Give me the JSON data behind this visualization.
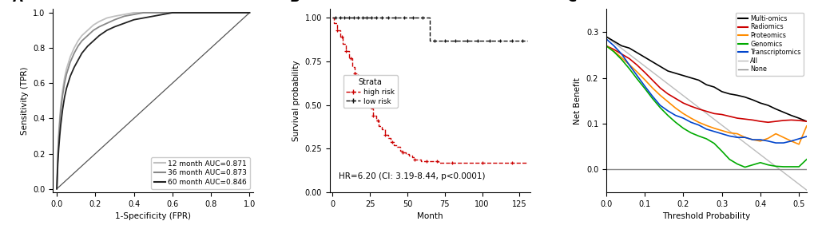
{
  "panel_A": {
    "xlabel": "1-Specificity (FPR)",
    "ylabel": "Sensitivity (TPR)",
    "roc_12": {
      "label": "12 month AUC=0.871",
      "color": "#c0c0c0",
      "x": [
        0,
        0.005,
        0.01,
        0.015,
        0.02,
        0.03,
        0.04,
        0.05,
        0.07,
        0.09,
        0.11,
        0.13,
        0.16,
        0.19,
        0.22,
        0.26,
        0.3,
        0.35,
        0.4,
        0.45,
        0.5,
        0.55,
        0.6,
        1.0
      ],
      "y": [
        0,
        0.2,
        0.32,
        0.4,
        0.47,
        0.56,
        0.63,
        0.68,
        0.75,
        0.8,
        0.84,
        0.87,
        0.9,
        0.93,
        0.95,
        0.97,
        0.98,
        0.99,
        1.0,
        1.0,
        1.0,
        1.0,
        1.0,
        1.0
      ]
    },
    "roc_36": {
      "label": "36 month AUC=0.873",
      "color": "#888888",
      "x": [
        0,
        0.005,
        0.01,
        0.015,
        0.02,
        0.03,
        0.04,
        0.05,
        0.07,
        0.09,
        0.11,
        0.13,
        0.16,
        0.19,
        0.22,
        0.26,
        0.3,
        0.35,
        0.4,
        0.45,
        0.5,
        0.55,
        0.6,
        1.0
      ],
      "y": [
        0,
        0.18,
        0.29,
        0.37,
        0.44,
        0.53,
        0.6,
        0.65,
        0.72,
        0.77,
        0.81,
        0.84,
        0.87,
        0.9,
        0.92,
        0.94,
        0.96,
        0.98,
        0.99,
        1.0,
        1.0,
        1.0,
        1.0,
        1.0
      ]
    },
    "roc_60": {
      "label": "60 month AUC=0.846",
      "color": "#222222",
      "x": [
        0,
        0.005,
        0.01,
        0.015,
        0.02,
        0.03,
        0.04,
        0.05,
        0.07,
        0.09,
        0.11,
        0.13,
        0.16,
        0.19,
        0.22,
        0.26,
        0.3,
        0.35,
        0.4,
        0.45,
        0.5,
        0.55,
        0.6,
        1.0
      ],
      "y": [
        0,
        0.14,
        0.23,
        0.3,
        0.36,
        0.45,
        0.52,
        0.57,
        0.64,
        0.69,
        0.73,
        0.77,
        0.81,
        0.84,
        0.87,
        0.9,
        0.92,
        0.94,
        0.96,
        0.97,
        0.98,
        0.99,
        1.0,
        1.0
      ]
    }
  },
  "panel_B": {
    "xlabel": "Month",
    "ylabel": "Survival probability",
    "annotation": "HR=6.20 (CI: 3.19-8.44, p<0.0001)",
    "high_risk": {
      "label": "high risk",
      "color": "#cc0000",
      "x": [
        0,
        1,
        3,
        5,
        7,
        9,
        11,
        13,
        15,
        17,
        19,
        21,
        23,
        25,
        27,
        29,
        31,
        33,
        35,
        37,
        39,
        41,
        43,
        45,
        47,
        49,
        51,
        53,
        55,
        57,
        59,
        61,
        63,
        65,
        67,
        69,
        71,
        75,
        80,
        90,
        100,
        110,
        120,
        130
      ],
      "y": [
        1.0,
        0.97,
        0.93,
        0.89,
        0.85,
        0.81,
        0.77,
        0.72,
        0.68,
        0.64,
        0.6,
        0.56,
        0.52,
        0.48,
        0.44,
        0.41,
        0.38,
        0.36,
        0.33,
        0.31,
        0.29,
        0.27,
        0.26,
        0.24,
        0.23,
        0.22,
        0.21,
        0.2,
        0.19,
        0.19,
        0.18,
        0.18,
        0.18,
        0.18,
        0.18,
        0.18,
        0.17,
        0.17,
        0.17,
        0.17,
        0.17,
        0.17,
        0.17,
        0.17
      ]
    },
    "low_risk": {
      "label": "low risk",
      "color": "#111111",
      "x": [
        0,
        10,
        20,
        30,
        40,
        50,
        60,
        64,
        65,
        70,
        80,
        90,
        100,
        110,
        120,
        130
      ],
      "y": [
        1.0,
        1.0,
        1.0,
        1.0,
        1.0,
        1.0,
        1.0,
        1.0,
        0.87,
        0.87,
        0.87,
        0.87,
        0.87,
        0.87,
        0.87,
        0.87
      ]
    },
    "censor_high_x": [
      3,
      6,
      9,
      12,
      15,
      18,
      21,
      24,
      27,
      30,
      35,
      40,
      47,
      55,
      63,
      70,
      80,
      100,
      120
    ],
    "censor_low_x": [
      2,
      5,
      8,
      11,
      14,
      17,
      20,
      23,
      26,
      29,
      33,
      37,
      42,
      48,
      54,
      60,
      68,
      75,
      82,
      90,
      97,
      105,
      112,
      120,
      127
    ]
  },
  "panel_C": {
    "xlabel": "Threshold Probability",
    "ylabel": "Net Benefit",
    "xlim": [
      0.0,
      0.52
    ],
    "ylim": [
      -0.05,
      0.35
    ],
    "yticks": [
      0.0,
      0.1,
      0.2,
      0.3
    ],
    "xticks": [
      0.0,
      0.1,
      0.2,
      0.3,
      0.4,
      0.5
    ],
    "multi_omics": {
      "label": "Multi-omics",
      "color": "#000000",
      "x": [
        0.0,
        0.02,
        0.04,
        0.06,
        0.08,
        0.1,
        0.12,
        0.14,
        0.16,
        0.18,
        0.2,
        0.22,
        0.24,
        0.26,
        0.28,
        0.3,
        0.32,
        0.34,
        0.36,
        0.38,
        0.4,
        0.42,
        0.44,
        0.46,
        0.48,
        0.5,
        0.52
      ],
      "y": [
        0.29,
        0.28,
        0.27,
        0.265,
        0.255,
        0.245,
        0.235,
        0.225,
        0.215,
        0.21,
        0.205,
        0.2,
        0.195,
        0.185,
        0.18,
        0.17,
        0.165,
        0.162,
        0.158,
        0.152,
        0.145,
        0.14,
        0.132,
        0.125,
        0.118,
        0.112,
        0.105
      ]
    },
    "radiomics": {
      "label": "Radiomics",
      "color": "#cc0000",
      "x": [
        0.0,
        0.02,
        0.04,
        0.06,
        0.08,
        0.1,
        0.12,
        0.14,
        0.16,
        0.18,
        0.2,
        0.22,
        0.24,
        0.26,
        0.28,
        0.3,
        0.32,
        0.34,
        0.36,
        0.38,
        0.4,
        0.42,
        0.44,
        0.46,
        0.48,
        0.5,
        0.52
      ],
      "y": [
        0.27,
        0.262,
        0.252,
        0.242,
        0.228,
        0.212,
        0.195,
        0.178,
        0.165,
        0.155,
        0.145,
        0.138,
        0.132,
        0.127,
        0.122,
        0.12,
        0.116,
        0.112,
        0.11,
        0.108,
        0.105,
        0.103,
        0.105,
        0.107,
        0.108,
        0.107,
        0.105
      ]
    },
    "proteomics": {
      "label": "Proteomics",
      "color": "#ff8c00",
      "x": [
        0.0,
        0.02,
        0.04,
        0.06,
        0.08,
        0.1,
        0.12,
        0.14,
        0.16,
        0.18,
        0.2,
        0.22,
        0.24,
        0.26,
        0.28,
        0.3,
        0.32,
        0.34,
        0.36,
        0.38,
        0.4,
        0.42,
        0.44,
        0.46,
        0.48,
        0.5,
        0.52
      ],
      "y": [
        0.27,
        0.258,
        0.244,
        0.229,
        0.213,
        0.196,
        0.178,
        0.162,
        0.148,
        0.134,
        0.122,
        0.112,
        0.103,
        0.096,
        0.09,
        0.085,
        0.08,
        0.078,
        0.07,
        0.065,
        0.062,
        0.068,
        0.078,
        0.07,
        0.062,
        0.055,
        0.095
      ]
    },
    "genomics": {
      "label": "Genomics",
      "color": "#00aa00",
      "x": [
        0.0,
        0.02,
        0.04,
        0.06,
        0.08,
        0.1,
        0.12,
        0.14,
        0.16,
        0.18,
        0.2,
        0.22,
        0.24,
        0.26,
        0.28,
        0.3,
        0.32,
        0.34,
        0.36,
        0.38,
        0.4,
        0.42,
        0.44,
        0.46,
        0.48,
        0.5,
        0.52
      ],
      "y": [
        0.27,
        0.257,
        0.24,
        0.22,
        0.198,
        0.177,
        0.155,
        0.135,
        0.118,
        0.103,
        0.09,
        0.08,
        0.073,
        0.067,
        0.057,
        0.04,
        0.022,
        0.012,
        0.005,
        0.01,
        0.015,
        0.01,
        0.007,
        0.006,
        0.006,
        0.006,
        0.022
      ]
    },
    "transcriptomics": {
      "label": "Transcriptomics",
      "color": "#0044cc",
      "x": [
        0.0,
        0.02,
        0.04,
        0.06,
        0.08,
        0.1,
        0.12,
        0.14,
        0.16,
        0.18,
        0.2,
        0.22,
        0.24,
        0.26,
        0.28,
        0.3,
        0.32,
        0.34,
        0.36,
        0.38,
        0.4,
        0.42,
        0.44,
        0.46,
        0.48,
        0.5,
        0.52
      ],
      "y": [
        0.285,
        0.27,
        0.252,
        0.228,
        0.205,
        0.182,
        0.16,
        0.14,
        0.128,
        0.118,
        0.112,
        0.103,
        0.097,
        0.088,
        0.083,
        0.078,
        0.073,
        0.07,
        0.07,
        0.065,
        0.065,
        0.062,
        0.058,
        0.058,
        0.062,
        0.067,
        0.072
      ]
    },
    "all_line": {
      "label": "All",
      "color": "#bbbbbb",
      "x": [
        0.0,
        0.52
      ],
      "y": [
        0.29,
        -0.045
      ]
    },
    "none_line": {
      "label": "None",
      "color": "#888888",
      "x": [
        0.0,
        0.52
      ],
      "y": [
        0.0,
        0.0
      ]
    }
  }
}
